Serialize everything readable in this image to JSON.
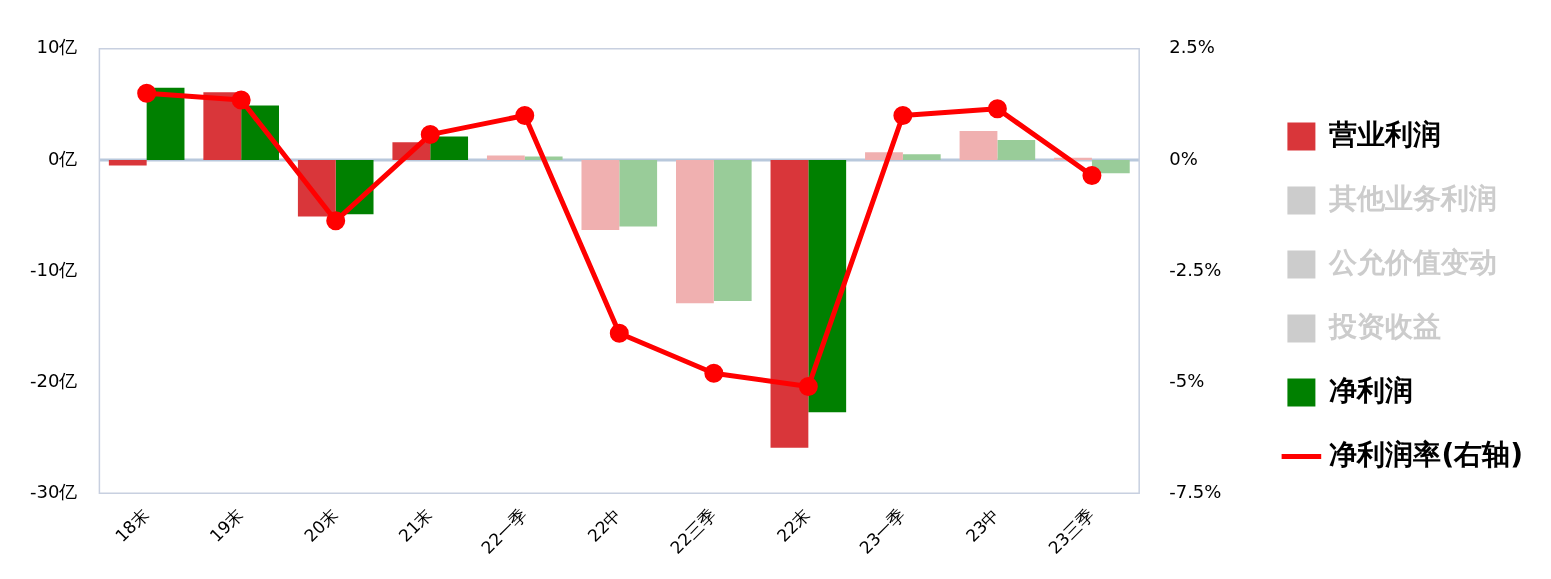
{
  "chart_data": {
    "type": "bar",
    "categories": [
      "18末",
      "19末",
      "20末",
      "21末",
      "22一季",
      "22中",
      "22三季",
      "22末",
      "23一季",
      "23中",
      "23三季"
    ],
    "series": [
      {
        "name": "营业利润",
        "color": "#d9363a",
        "colors": [
          "#d9363a",
          "#d9363a",
          "#d9363a",
          "#d9363a",
          "#f0b0b0",
          "#f0b0b0",
          "#f0b0b0",
          "#d9363a",
          "#f0b0b0",
          "#f0b0b0",
          "#f0b0b0"
        ],
        "values": [
          -0.5,
          6.1,
          -5.1,
          1.6,
          0.4,
          -6.3,
          -12.9,
          -25.9,
          0.7,
          2.6,
          0.2
        ]
      },
      {
        "name": "其他业务利润",
        "type": "bar",
        "color": "#cccccc",
        "values": [
          null,
          null,
          null,
          null,
          null,
          null,
          null,
          null,
          null,
          null,
          null
        ]
      },
      {
        "name": "公允价值变动",
        "type": "bar",
        "color": "#cccccc",
        "values": [
          null,
          null,
          null,
          null,
          null,
          null,
          null,
          null,
          null,
          null,
          null
        ]
      },
      {
        "name": "投资收益",
        "type": "bar",
        "color": "#cccccc",
        "values": [
          null,
          null,
          null,
          null,
          null,
          null,
          null,
          null,
          null,
          null,
          null
        ]
      },
      {
        "name": "净利润",
        "color": "#008000",
        "colors": [
          "#008000",
          "#008000",
          "#008000",
          "#008000",
          "#99cc99",
          "#99cc99",
          "#99cc99",
          "#008000",
          "#99cc99",
          "#99cc99",
          "#99cc99"
        ],
        "values": [
          6.5,
          4.9,
          -4.9,
          2.1,
          0.3,
          -6.0,
          -12.7,
          -22.7,
          0.5,
          1.8,
          -1.2
        ]
      },
      {
        "name": "净利润率(右轴)",
        "type": "line",
        "axis": "y2",
        "color": "#ff0000",
        "values": [
          1.5,
          1.35,
          -1.37,
          0.57,
          1.0,
          -3.9,
          -4.8,
          -5.1,
          1.0,
          1.15,
          -0.35
        ]
      }
    ],
    "ylim": [
      -30,
      10
    ],
    "yticks": [
      {
        "value": -30,
        "label": "-30亿"
      },
      {
        "value": -20,
        "label": "-20亿"
      },
      {
        "value": -10,
        "label": "-10亿"
      },
      {
        "value": 0,
        "label": "0亿"
      },
      {
        "value": 10,
        "label": "10亿"
      }
    ],
    "y2lim": [
      -7.5,
      2.5
    ],
    "y2ticks": [
      {
        "value": -7.5,
        "label": "-7.5%"
      },
      {
        "value": -5,
        "label": "-5%"
      },
      {
        "value": -2.5,
        "label": "-2.5%"
      },
      {
        "value": 0,
        "label": "0%"
      },
      {
        "value": 2.5,
        "label": "2.5%"
      }
    ],
    "ref_lines": [
      {
        "axis": "y",
        "value": 0,
        "color": "#b8c8dc"
      }
    ],
    "marker": "circle",
    "line_style": "solid",
    "legend": "right",
    "grid": false
  }
}
